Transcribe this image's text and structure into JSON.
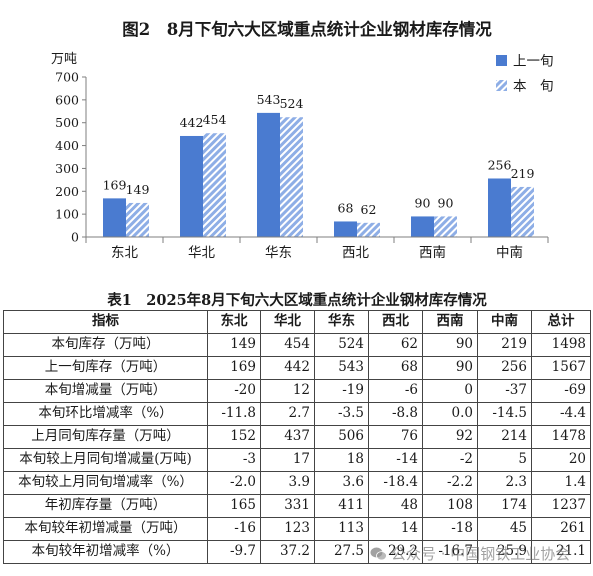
{
  "chart_data": [
    {
      "type": "bar",
      "title": "图2　8月下旬六大区域重点统计企业钢材库存情况",
      "ylabel": "万吨",
      "categories": [
        "东北",
        "华北",
        "华东",
        "西北",
        "西南",
        "中南"
      ],
      "series": [
        {
          "name": "上一旬",
          "values": [
            169,
            442,
            543,
            68,
            90,
            256
          ],
          "color": "#4a7bd0",
          "hatched": false
        },
        {
          "name": "本　旬",
          "values": [
            149,
            454,
            524,
            62,
            90,
            219
          ],
          "color": "#8eaee6",
          "hatched": true
        }
      ],
      "ylim": [
        0,
        700
      ],
      "yticks": [
        0,
        100,
        200,
        300,
        400,
        500,
        600,
        700
      ],
      "data_labels": true,
      "grid": false,
      "legend": "top-right"
    },
    {
      "type": "table",
      "title": "表1　2025年8月下旬六大区域重点统计企业钢材库存情况",
      "columns": [
        "指标",
        "东北",
        "华北",
        "华东",
        "西北",
        "西南",
        "中南",
        "总计"
      ],
      "rows": [
        [
          "本旬库存（万吨）",
          "149",
          "454",
          "524",
          "62",
          "90",
          "219",
          "1498"
        ],
        [
          "上一旬库存（万吨）",
          "169",
          "442",
          "543",
          "68",
          "90",
          "256",
          "1567"
        ],
        [
          "本旬增减量（万吨）",
          "-20",
          "12",
          "-19",
          "-6",
          "0",
          "-37",
          "-69"
        ],
        [
          "本旬环比增减率（%）",
          "-11.8",
          "2.7",
          "-3.5",
          "-8.8",
          "0.0",
          "-14.5",
          "-4.4"
        ],
        [
          "上月同旬库存量（万吨）",
          "152",
          "437",
          "506",
          "76",
          "92",
          "214",
          "1478"
        ],
        [
          "本旬较上月同旬增减量(万吨)",
          "-3",
          "17",
          "18",
          "-14",
          "-2",
          "5",
          "20"
        ],
        [
          "本旬较上月同旬增减率（%）",
          "-2.0",
          "3.9",
          "3.6",
          "-18.4",
          "-2.2",
          "2.3",
          "1.4"
        ],
        [
          "年初库存量（万吨）",
          "165",
          "331",
          "411",
          "48",
          "108",
          "174",
          "1237"
        ],
        [
          "本旬较年初增减量（万吨）",
          "-16",
          "123",
          "113",
          "14",
          "-18",
          "45",
          "261"
        ],
        [
          "本旬较年初增减率（%）",
          "-9.7",
          "37.2",
          "27.5",
          "29.2",
          "-16.7",
          "25.9",
          "21.1"
        ]
      ]
    }
  ],
  "watermark": {
    "text": "公众号 · 中国钢铁工业协会",
    "icon": "wechat-icon",
    "color": "#6e6e6e"
  }
}
